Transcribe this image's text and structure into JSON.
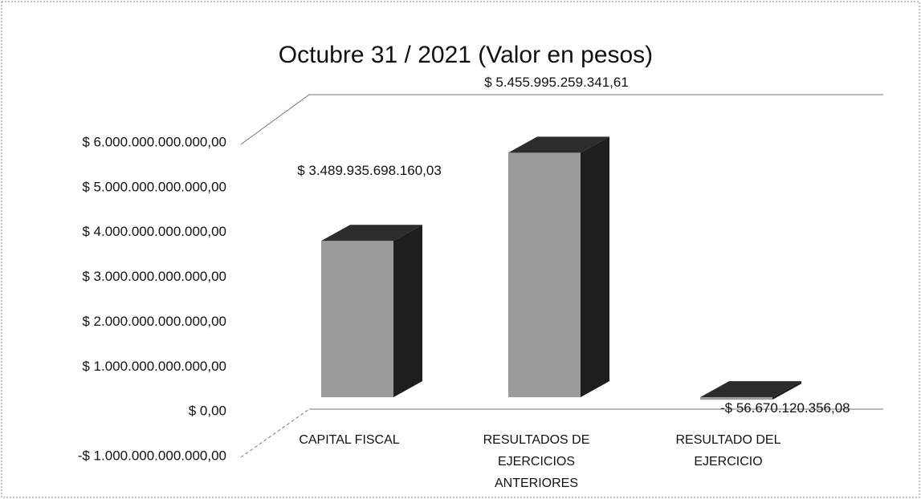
{
  "chart_data": {
    "type": "bar3d",
    "title": "Octubre 31 / 2021 (Valor en pesos)",
    "categories": [
      "CAPITAL FISCAL",
      "RESULTADOS DE EJERCICIOS ANTERIORES",
      "RESULTADO DEL EJERCICIO"
    ],
    "values": [
      3489935698160.03,
      5455995259341.61,
      -56670120356.08
    ],
    "value_labels": [
      "$ 3.489.935.698.160,03",
      "$ 5.455.995.259.341,61",
      "-$ 56.670.120.356,08"
    ],
    "color": "#9b9b9b",
    "ylim": [
      -1000000000000,
      6000000000000
    ],
    "yticks": [
      {
        "value": -1000000000000,
        "label": "-$ 1.000.000.000.000,00"
      },
      {
        "value": 0,
        "label": "$ 0,00"
      },
      {
        "value": 1000000000000,
        "label": "$ 1.000.000.000.000,00"
      },
      {
        "value": 2000000000000,
        "label": "$ 2.000.000.000.000,00"
      },
      {
        "value": 3000000000000,
        "label": "$ 3.000.000.000.000,00"
      },
      {
        "value": 4000000000000,
        "label": "$ 4.000.000.000.000,00"
      },
      {
        "value": 5000000000000,
        "label": "$ 5.000.000.000.000,00"
      },
      {
        "value": 6000000000000,
        "label": "$ 6.000.000.000.000,00"
      }
    ],
    "grid": false
  }
}
